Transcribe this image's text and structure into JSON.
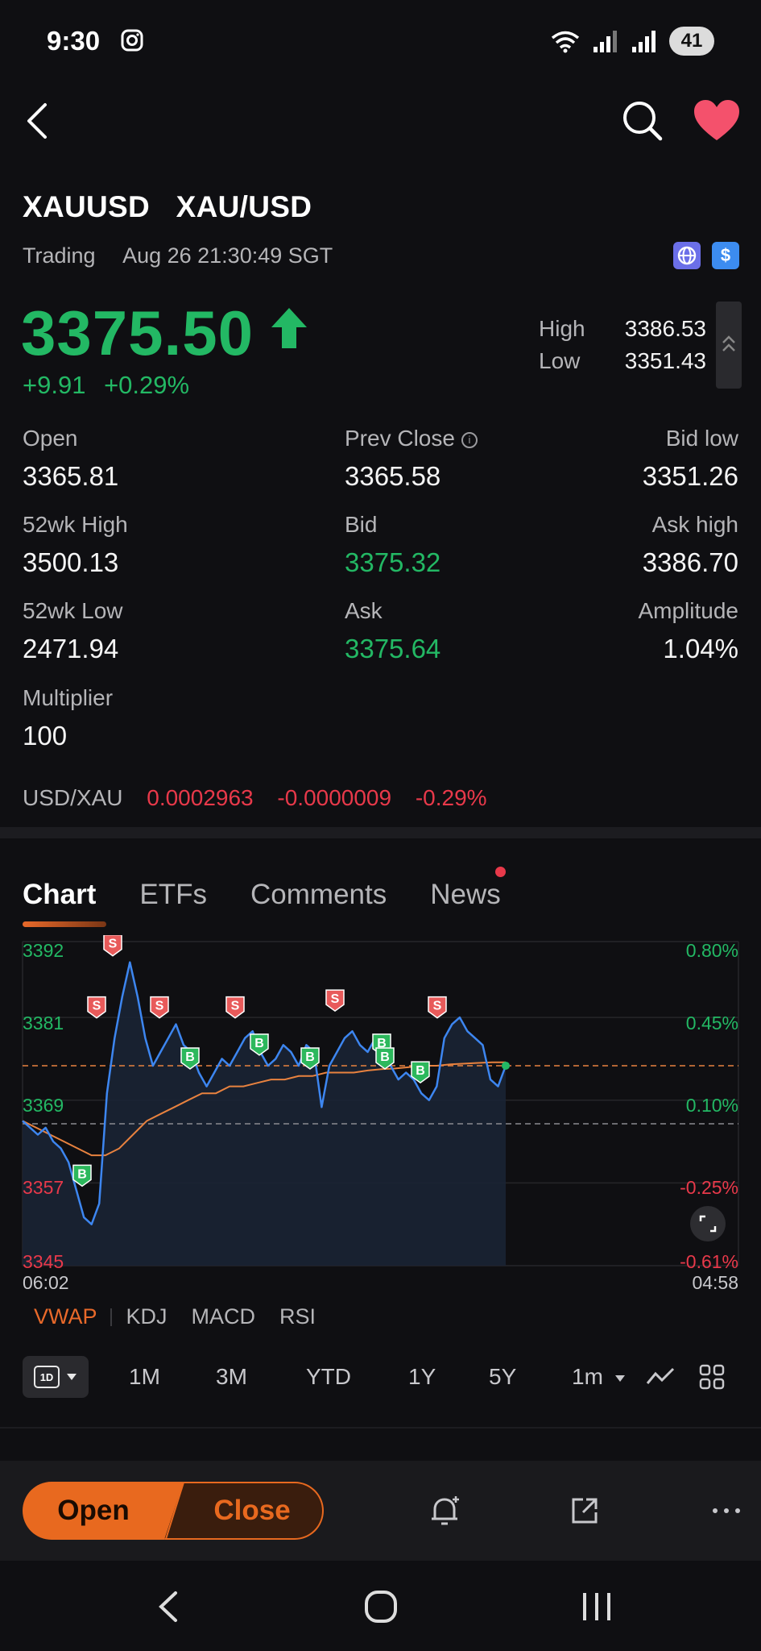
{
  "status": {
    "time": "9:30",
    "battery": "41"
  },
  "header": {
    "symbol": "XAUUSD",
    "pair": "XAU/USD",
    "state": "Trading",
    "timestamp": "Aug 26 21:30:49 SGT"
  },
  "quote": {
    "price": "3375.50",
    "change": "+9.91",
    "change_pct": "+0.29%",
    "high_label": "High",
    "high": "3386.53",
    "low_label": "Low",
    "low": "3351.43"
  },
  "stats": [
    {
      "label": "Open",
      "value": "3365.81"
    },
    {
      "label": "Prev Close",
      "value": "3365.58"
    },
    {
      "label": "Bid low",
      "value": "3351.26"
    },
    {
      "label": "52wk High",
      "value": "3500.13"
    },
    {
      "label": "Bid",
      "value": "3375.32"
    },
    {
      "label": "Ask high",
      "value": "3386.70"
    },
    {
      "label": "52wk Low",
      "value": "2471.94"
    },
    {
      "label": "Ask",
      "value": "3375.64"
    },
    {
      "label": "Amplitude",
      "value": "1.04%"
    },
    {
      "label": "Multiplier",
      "value": "100"
    }
  ],
  "inverse": {
    "label": "USD/XAU",
    "value": "0.0002963",
    "change": "-0.0000009",
    "change_pct": "-0.29%"
  },
  "tabs": [
    "Chart",
    "ETFs",
    "Comments",
    "News"
  ],
  "indicators": [
    "VWAP",
    "KDJ",
    "MACD",
    "RSI"
  ],
  "ranges": [
    "1M",
    "3M",
    "YTD",
    "1Y",
    "5Y",
    "1m"
  ],
  "range_1d": "1D",
  "actions": {
    "open": "Open",
    "close": "Close"
  },
  "colors": {
    "up": "#23b864",
    "down": "#e8394a",
    "accent": "#e8691f",
    "line": "#3d86f0",
    "vwap": "#e8823f"
  },
  "chart_data": {
    "type": "line",
    "y_left_ticks": [
      "3392",
      "3381",
      "3369",
      "3357",
      "3345"
    ],
    "y_right_ticks": [
      "0.80%",
      "0.45%",
      "0.10%",
      "-0.25%",
      "-0.61%"
    ],
    "x_ticks": [
      "06:02",
      "04:58"
    ],
    "ylim": [
      3345,
      3392
    ],
    "prev_close": 3365.58,
    "series": [
      {
        "values": [
          3366,
          3365,
          3364,
          3365,
          3363,
          3362,
          3360,
          3356,
          3352,
          3351,
          3354,
          3370,
          3378,
          3384,
          3389,
          3384,
          3378,
          3374,
          3376,
          3378,
          3380,
          3377,
          3376,
          3373,
          3371,
          3373,
          3375,
          3374,
          3376,
          3378,
          3379,
          3376,
          3374,
          3375,
          3377,
          3376,
          3374,
          3377,
          3376,
          3368,
          3374,
          3376,
          3378,
          3379,
          3377,
          3376,
          3378,
          3377,
          3374,
          3372,
          3373,
          3372,
          3370,
          3369,
          3371,
          3378,
          3380,
          3381,
          3379,
          3378,
          3377,
          3372,
          3371,
          3374
        ]
      },
      {
        "values": [
          3366,
          3365,
          3364,
          3363,
          3362,
          3361,
          3361,
          3362,
          3364,
          3366,
          3367,
          3368,
          3369,
          3370,
          3370,
          3371,
          3371,
          3371.5,
          3372,
          3372,
          3372.5,
          3372.5,
          3373,
          3373,
          3373,
          3373.3,
          3373.5,
          3373.6,
          3373.8,
          3374,
          3374,
          3374.2,
          3374.3,
          3374.4,
          3374.5,
          3374.5
        ]
      }
    ],
    "markers": [
      {
        "type": "S",
        "value": 3389
      },
      {
        "type": "S",
        "value": 3380
      },
      {
        "type": "S",
        "value": 3380
      },
      {
        "type": "S",
        "value": 3380
      },
      {
        "type": "S",
        "value": 3381
      },
      {
        "type": "S",
        "value": 3380
      },
      {
        "type": "B",
        "value": 3374
      },
      {
        "type": "B",
        "value": 3376
      },
      {
        "type": "B",
        "value": 3374
      },
      {
        "type": "B",
        "value": 3376
      },
      {
        "type": "B",
        "value": 3374
      },
      {
        "type": "B",
        "value": 3372
      },
      {
        "type": "B",
        "value": 3357
      }
    ]
  }
}
